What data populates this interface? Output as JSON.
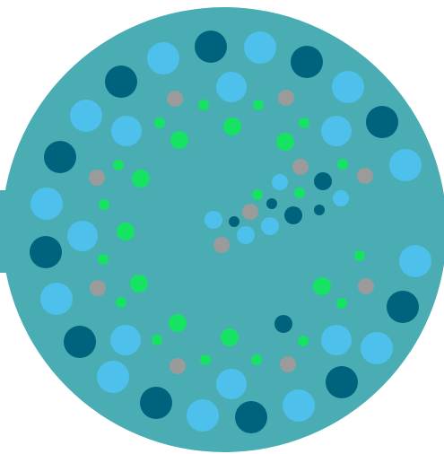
{
  "colors": {
    "board": "#4aadb4",
    "background": "#ffffff",
    "marble_light": "#4ec0ec",
    "marble_dark": "#00637e",
    "marble_gray": "#9b9b9b",
    "marble_green": "#16e362"
  },
  "board": {
    "shape": "circle",
    "side_tab": "left",
    "interactable": true
  },
  "marble_types": [
    "light-blue",
    "dark-teal",
    "gray",
    "green"
  ],
  "marble_counts": {
    "light-blue": 29,
    "dark-teal": 17,
    "gray": 12,
    "green": 31
  }
}
